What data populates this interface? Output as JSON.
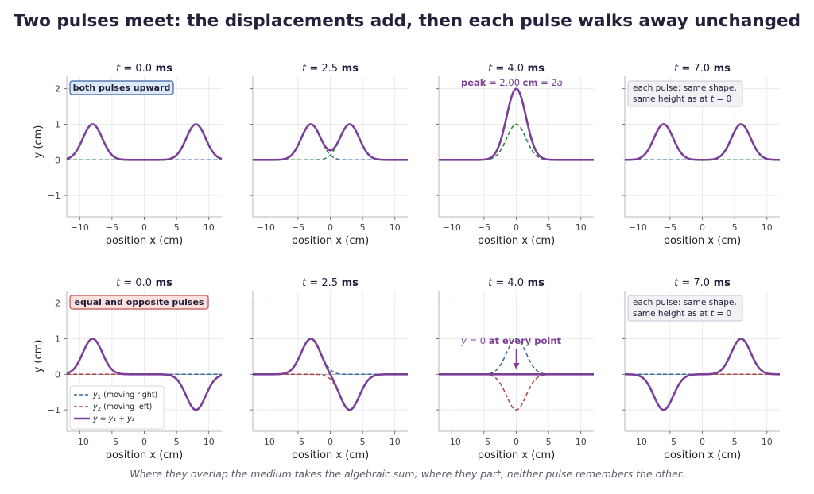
{
  "title": "Two pulses meet:  the displacements add, then each pulse walks away unchanged",
  "caption": "Where they overlap the medium takes the algebraic sum; where they part, neither pulse remembers the other.",
  "colors": {
    "sum": "#7b3f98",
    "y1": "#336a9e",
    "y1_peak": "#2e6e6e",
    "y2": "#b0413e",
    "y2_top": "#3a8a4a",
    "grid": "#e6e6ea",
    "axis": "#b8b8c0",
    "text": "#1f1f3a"
  },
  "chart_data": {
    "type": "line",
    "pulse_shape": "gaussian, width about 1.5 cm, height 1 cm, speed 2 cm per ms, starting at x = ±8 cm",
    "axes": {
      "xlabel": "position  x  (cm)",
      "ylabel": "y  (cm)",
      "xlim": [
        -12,
        12
      ],
      "ylim": [
        -1.6,
        2.35
      ],
      "xticks": [
        -10,
        -5,
        0,
        5,
        10
      ],
      "yticks": [
        -1,
        0,
        1,
        2
      ],
      "xtick_labels": [
        "−10",
        "−5",
        "0",
        "5",
        "10"
      ],
      "ytick_labels": [
        "−1",
        "0",
        "1",
        "2"
      ],
      "grid": true
    },
    "legend": {
      "placement": "lower-left of bottom-left panel",
      "entries": [
        {
          "series": "y1",
          "label_math": "y",
          "label_sub": "1",
          "label_rest": "  (moving right)"
        },
        {
          "series": "y2",
          "label_math": "y",
          "label_sub": "2",
          "label_rest": "  (moving left)"
        },
        {
          "series": "sum",
          "label_rest": "y = y₁ + y₂"
        }
      ]
    },
    "rows": [
      {
        "name": "both pulses upward",
        "y1_amplitude": 1,
        "y2_amplitude": 1,
        "panels": [
          {
            "t_prefix": "t = ",
            "t_value": "0.0",
            "unit": " ms",
            "t": 0.0,
            "pulse1_center": -8,
            "pulse2_center": 8,
            "note": "both pulses upward"
          },
          {
            "t_prefix": "t = ",
            "t_value": "2.5",
            "unit": " ms",
            "t": 2.5,
            "pulse1_center": -3,
            "pulse2_center": 3
          },
          {
            "t_prefix": "t = ",
            "t_value": "4.0",
            "unit": " ms",
            "t": 4.0,
            "pulse1_center": 0,
            "pulse2_center": 0,
            "peak_value": 2.0,
            "annotation": {
              "word": "peak",
              "eq": "= 2.00",
              "unit": "cm",
              "tail": "= 2a"
            }
          },
          {
            "t_prefix": "t = ",
            "t_value": "7.0",
            "unit": " ms",
            "t": 7.0,
            "pulse1_center": 6,
            "pulse2_center": -6,
            "note_lines": [
              "each pulse:  same shape,",
              "same height as at  t = 0"
            ]
          }
        ]
      },
      {
        "name": "equal and opposite pulses",
        "y1_amplitude": 1,
        "y2_amplitude": -1,
        "panels": [
          {
            "t_prefix": "t = ",
            "t_value": "0.0",
            "unit": " ms",
            "t": 0.0,
            "pulse1_center": -8,
            "pulse2_center": 8,
            "note": "equal and opposite pulses"
          },
          {
            "t_prefix": "t = ",
            "t_value": "2.5",
            "unit": " ms",
            "t": 2.5,
            "pulse1_center": -3,
            "pulse2_center": 3
          },
          {
            "t_prefix": "t = ",
            "t_value": "4.0",
            "unit": " ms",
            "t": 4.0,
            "pulse1_center": 0,
            "pulse2_center": 0,
            "annotation": {
              "math": "y = 0",
              "bold": "at  every  point"
            }
          },
          {
            "t_prefix": "t = ",
            "t_value": "7.0",
            "unit": " ms",
            "t": 7.0,
            "pulse1_center": 6,
            "pulse2_center": -6,
            "note_lines": [
              "each pulse:  same shape,",
              "same height as at  t = 0"
            ]
          }
        ]
      }
    ]
  }
}
